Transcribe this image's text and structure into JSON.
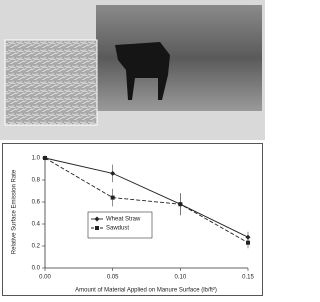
{
  "chart_data": {
    "type": "line",
    "x": [
      0,
      0.05,
      0.1,
      0.15
    ],
    "xlim": [
      0,
      0.15
    ],
    "xticks": [
      {
        "value": 0,
        "label": "0.00"
      },
      {
        "value": 0.05,
        "label": "0.05"
      },
      {
        "value": 0.1,
        "label": "0.10"
      },
      {
        "value": 0.15,
        "label": "0.15"
      }
    ],
    "ylim": [
      0,
      1
    ],
    "yticks": [
      {
        "value": 0,
        "label": "0.0"
      },
      {
        "value": 0.2,
        "label": "0.2"
      },
      {
        "value": 0.4,
        "label": "0.4"
      },
      {
        "value": 0.6,
        "label": "0.6"
      },
      {
        "value": 0.8,
        "label": "0.8"
      },
      {
        "value": 1,
        "label": "1.0"
      }
    ],
    "xlabel": "Amount of Material Applied on Manure Surface (lb/ft²)",
    "ylabel": "Relative Surface Emission Rate",
    "legend": "center-left",
    "series": [
      {
        "name": "Wheat Straw",
        "color": "#222222",
        "dash": false,
        "marker": "diamond",
        "values": [
          1.0,
          0.86,
          0.58,
          0.28
        ],
        "errors": [
          0,
          0.08,
          0.1,
          0.05
        ]
      },
      {
        "name": "Sawdust",
        "color": "#222222",
        "dash": true,
        "marker": "square",
        "values": [
          1.0,
          0.64,
          0.58,
          0.23
        ],
        "errors": [
          0,
          0.08,
          0.1,
          0.05
        ]
      }
    ]
  }
}
